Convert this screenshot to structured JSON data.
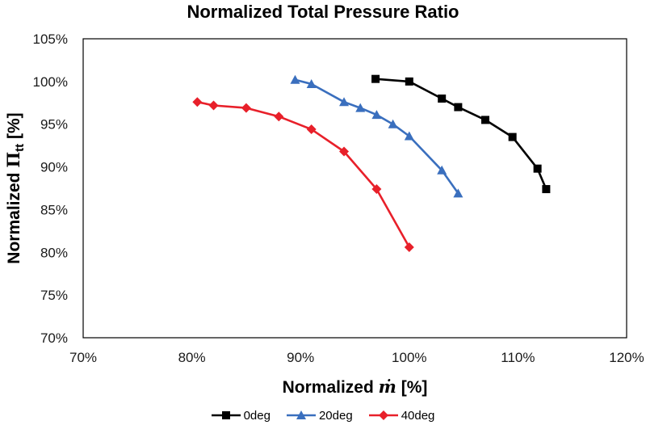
{
  "chart_data": {
    "type": "line",
    "title": "Normalized Total Pressure Ratio",
    "xlabel": {
      "prefix": "Normalized ",
      "symbol": "ṁ",
      "suffix": " [%]"
    },
    "ylabel": {
      "prefix": "Normalized ",
      "symbol": "Π",
      "subscript": "tt",
      "suffix": " [%]"
    },
    "xlim": [
      70,
      120
    ],
    "ylim": [
      70,
      105
    ],
    "xticks": [
      70,
      80,
      90,
      100,
      110,
      120
    ],
    "yticks": [
      70,
      75,
      80,
      85,
      90,
      95,
      100,
      105
    ],
    "xtick_labels": [
      "70%",
      "80%",
      "90%",
      "100%",
      "110%",
      "120%"
    ],
    "ytick_labels": [
      "70%",
      "75%",
      "80%",
      "85%",
      "90%",
      "95%",
      "100%",
      "105%"
    ],
    "grid": false,
    "legend_position": "bottom",
    "series": [
      {
        "name": "0deg",
        "color": "#000000",
        "marker": "square",
        "x": [
          96.9,
          100.0,
          103.0,
          104.5,
          107.0,
          109.5,
          111.8,
          112.6
        ],
        "y": [
          100.3,
          100.0,
          98.0,
          97.0,
          95.5,
          93.5,
          89.8,
          87.4
        ]
      },
      {
        "name": "20deg",
        "color": "#3a6fbe",
        "marker": "triangle",
        "x": [
          89.5,
          91.0,
          94.0,
          95.5,
          97.0,
          98.5,
          100.0,
          103.0,
          104.5
        ],
        "y": [
          100.2,
          99.7,
          97.6,
          96.9,
          96.1,
          95.0,
          93.6,
          89.6,
          86.9
        ]
      },
      {
        "name": "40deg",
        "color": "#e8202a",
        "marker": "diamond",
        "x": [
          80.5,
          82.0,
          85.0,
          88.0,
          91.0,
          94.0,
          97.0,
          100.0
        ],
        "y": [
          97.6,
          97.2,
          96.9,
          95.9,
          94.4,
          91.8,
          87.4,
          80.6
        ]
      }
    ]
  }
}
